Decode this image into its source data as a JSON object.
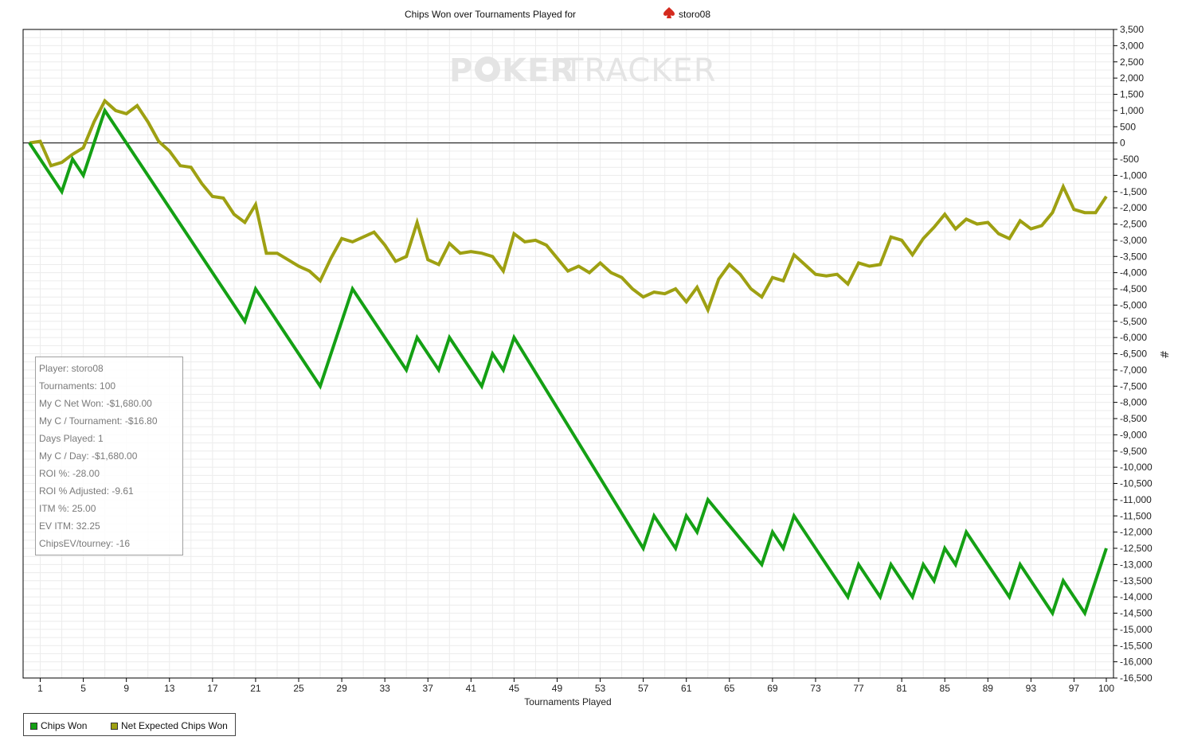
{
  "chart_data": {
    "type": "line",
    "title": "Chips Won over Tournaments Played for",
    "player_name": "storo08",
    "watermark_left": "P",
    "watermark_mid": "KER",
    "watermark_right": "TRACKER",
    "xlabel": "Tournaments Played",
    "ylabel": "#",
    "xlim": [
      0,
      100
    ],
    "ylim": [
      -16500,
      3500
    ],
    "x_ticks": [
      1,
      5,
      9,
      13,
      17,
      21,
      25,
      29,
      33,
      37,
      41,
      45,
      49,
      53,
      57,
      61,
      65,
      69,
      73,
      77,
      81,
      85,
      89,
      93,
      97,
      100
    ],
    "y_ticks": [
      3500,
      3000,
      2500,
      2000,
      1500,
      1000,
      500,
      0,
      -500,
      -1000,
      -1500,
      -2000,
      -2500,
      -3000,
      -3500,
      -4000,
      -4500,
      -5000,
      -5500,
      -6000,
      -6500,
      -7000,
      -7500,
      -8000,
      -8500,
      -9000,
      -9500,
      -10000,
      -10500,
      -11000,
      -11500,
      -12000,
      -12500,
      -13000,
      -13500,
      -14000,
      -14500,
      -15000,
      -15500,
      -16000,
      -16500
    ],
    "grid": true,
    "legend": "bottom-left",
    "colors": {
      "chips_won": "#14a014",
      "net_expected": "#9ea012",
      "zero_line": "#000000",
      "grid": "#ececec"
    },
    "series": [
      {
        "name": "Chips Won",
        "x": [
          0,
          3,
          4,
          5,
          7,
          20,
          21,
          27,
          30,
          35,
          36,
          38,
          39,
          42,
          43,
          44,
          45,
          57,
          58,
          60,
          61,
          62,
          63,
          68,
          69,
          70,
          71,
          76,
          77,
          79,
          80,
          82,
          83,
          84,
          85,
          86,
          87,
          91,
          92,
          95,
          96,
          98,
          100
        ],
        "y": [
          0,
          -1500,
          -500,
          -1000,
          1000,
          -5500,
          -4500,
          -7500,
          -4500,
          -7000,
          -6000,
          -7000,
          -6000,
          -7500,
          -6500,
          -7000,
          -6000,
          -12500,
          -11500,
          -12500,
          -11500,
          -12000,
          -11000,
          -13000,
          -12000,
          -12500,
          -11500,
          -14000,
          -13000,
          -14000,
          -13000,
          -14000,
          -13000,
          -13500,
          -12500,
          -13000,
          -12000,
          -14000,
          -13000,
          -14500,
          -13500,
          -14500,
          -12500
        ]
      },
      {
        "name": "Net Expected Chips Won",
        "x": [
          0,
          1,
          2,
          3,
          4,
          5,
          6,
          7,
          8,
          9,
          10,
          11,
          12,
          13,
          14,
          15,
          16,
          17,
          18,
          19,
          20,
          21,
          22,
          23,
          24,
          25,
          26,
          27,
          28,
          29,
          30,
          31,
          32,
          33,
          34,
          35,
          36,
          37,
          38,
          39,
          40,
          41,
          42,
          43,
          44,
          45,
          46,
          47,
          48,
          49,
          50,
          51,
          52,
          53,
          54,
          55,
          56,
          57,
          58,
          59,
          60,
          61,
          62,
          63,
          64,
          65,
          66,
          67,
          68,
          69,
          70,
          71,
          72,
          73,
          74,
          75,
          76,
          77,
          78,
          79,
          80,
          81,
          82,
          83,
          84,
          85,
          86,
          87,
          88,
          89,
          90,
          91,
          92,
          93,
          94,
          95,
          96,
          97,
          98,
          99,
          100
        ],
        "y": [
          0,
          50,
          -700,
          -600,
          -350,
          -150,
          650,
          1300,
          1000,
          900,
          1150,
          650,
          50,
          -250,
          -700,
          -750,
          -1250,
          -1650,
          -1700,
          -2200,
          -2450,
          -1900,
          -3400,
          -3400,
          -3600,
          -3800,
          -3950,
          -4250,
          -3550,
          -2950,
          -3050,
          -2900,
          -2750,
          -3150,
          -3650,
          -3500,
          -2450,
          -3600,
          -3750,
          -3100,
          -3400,
          -3350,
          -3400,
          -3500,
          -3950,
          -2800,
          -3050,
          -3000,
          -3150,
          -3550,
          -3950,
          -3800,
          -4000,
          -3700,
          -4000,
          -4150,
          -4500,
          -4750,
          -4600,
          -4650,
          -4500,
          -4900,
          -4450,
          -5150,
          -4200,
          -3750,
          -4050,
          -4500,
          -4750,
          -4150,
          -4250,
          -3450,
          -3750,
          -4050,
          -4100,
          -4050,
          -4350,
          -3700,
          -3800,
          -3750,
          -2900,
          -3000,
          -3450,
          -2950,
          -2600,
          -2200,
          -2650,
          -2350,
          -2500,
          -2450,
          -2800,
          -2950,
          -2400,
          -2650,
          -2550,
          -2150,
          -1350,
          -2050,
          -2150,
          -2150,
          -1650
        ]
      }
    ]
  },
  "stats": [
    "Player: storo08",
    "Tournaments: 100",
    "My C Net Won: -$1,680.00",
    "My C / Tournament: -$16.80",
    "Days Played: 1",
    "My C / Day: -$1,680.00",
    "ROI %: -28.00",
    "ROI % Adjusted: -9.61",
    "ITM %: 25.00",
    "EV ITM: 32.25",
    "ChipsEV/tourney: -16"
  ]
}
